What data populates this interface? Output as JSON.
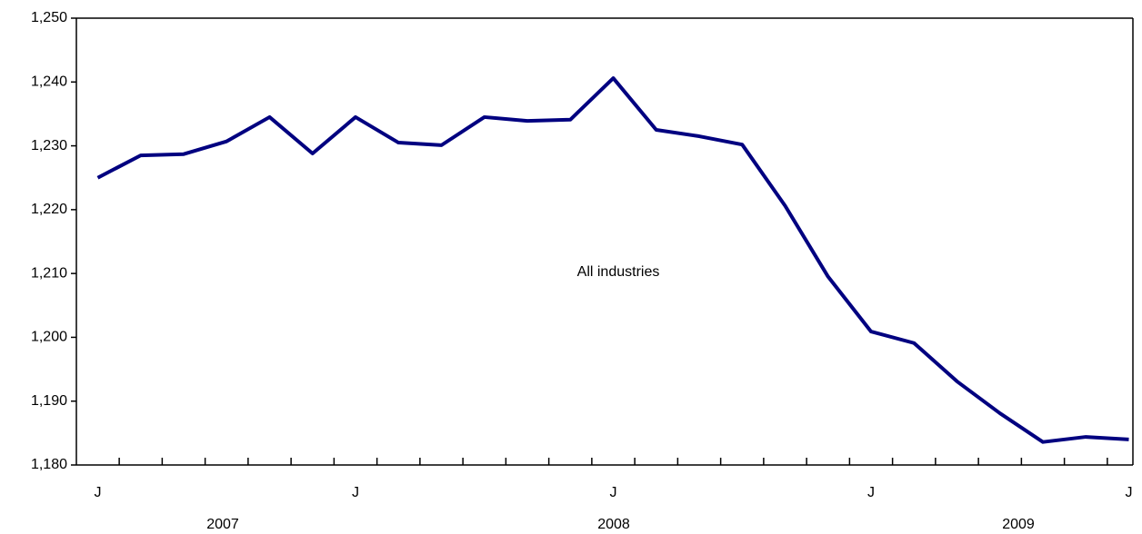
{
  "chart_data": {
    "type": "line",
    "annotation": "All industries",
    "categories": [
      "J",
      null,
      null,
      null,
      null,
      null,
      "J",
      null,
      null,
      null,
      null,
      null,
      "J",
      null,
      null,
      null,
      null,
      null,
      "J",
      null,
      null,
      null,
      null,
      null,
      "J"
    ],
    "year_labels": [
      "2007",
      "2008",
      "2009"
    ],
    "series": [
      {
        "name": "All industries",
        "color": "#000080",
        "values": [
          1225,
          1228.5,
          1228.7,
          1230.7,
          1234.5,
          1228.8,
          1234.5,
          1230.5,
          1230.1,
          1234.5,
          1233.9,
          1234.1,
          1240.6,
          1232.5,
          1231.5,
          1230.2,
          1220.6,
          1209.5,
          1200.9,
          1199.1,
          1193.1,
          1188.1,
          1183.6,
          1184.4,
          1184.0
        ]
      }
    ],
    "ylim": [
      1180,
      1250
    ],
    "yticks": [
      {
        "value": 1180,
        "label": "1,180"
      },
      {
        "value": 1190,
        "label": "1,190"
      },
      {
        "value": 1200,
        "label": "1,200"
      },
      {
        "value": 1210,
        "label": "1,210"
      },
      {
        "value": 1220,
        "label": "1,220"
      },
      {
        "value": 1230,
        "label": "1,230"
      },
      {
        "value": 1240,
        "label": "1,240"
      },
      {
        "value": 1250,
        "label": "1,250"
      }
    ],
    "grid": false
  }
}
